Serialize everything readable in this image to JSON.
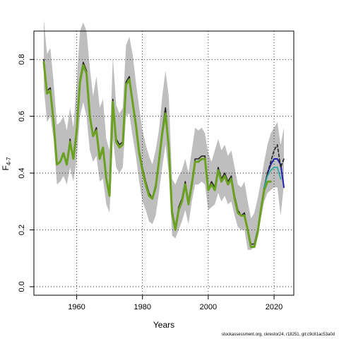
{
  "chart_data": {
    "type": "line",
    "xlabel": "Years",
    "ylabel_base": "F",
    "ylabel_sub": "4-7",
    "xlim": [
      1947,
      2026
    ],
    "ylim": [
      -0.03,
      0.9
    ],
    "xticks": [
      1960,
      1980,
      2000,
      2020
    ],
    "yticks": [
      0.0,
      0.2,
      0.4,
      0.6,
      0.8
    ],
    "grid": true,
    "colors": {
      "band": "#bebebe",
      "green": "#6aa121",
      "olive": "#a8a838",
      "dark": "#222222",
      "blue": "#2020b0",
      "teal": "#22a8a0",
      "grid": "#000000"
    },
    "band_upper": {
      "x": [
        1950,
        1951,
        1952,
        1953,
        1954,
        1955,
        1956,
        1957,
        1958,
        1959,
        1960,
        1961,
        1962,
        1963,
        1964,
        1965,
        1966,
        1967,
        1968,
        1969,
        1970,
        1971,
        1972,
        1973,
        1974,
        1975,
        1976,
        1977,
        1978,
        1979,
        1980,
        1981,
        1982,
        1983,
        1984,
        1985,
        1986,
        1987,
        1988,
        1989,
        1990,
        1991,
        1992,
        1993,
        1994,
        1995,
        1996,
        1997,
        1998,
        1999,
        2000,
        2001,
        2002,
        2003,
        2004,
        2005,
        2006,
        2007,
        2008,
        2009,
        2010,
        2011,
        2012,
        2013,
        2014,
        2015,
        2016,
        2017,
        2018,
        2019,
        2020,
        2021,
        2022,
        2023
      ],
      "y": [
        0.94,
        0.82,
        0.84,
        0.72,
        0.57,
        0.58,
        0.6,
        0.55,
        0.63,
        0.56,
        0.72,
        0.9,
        0.93,
        0.9,
        0.77,
        0.67,
        0.74,
        0.63,
        0.66,
        0.52,
        0.48,
        0.81,
        0.64,
        0.61,
        0.63,
        0.85,
        0.88,
        0.82,
        0.72,
        0.63,
        0.55,
        0.5,
        0.46,
        0.43,
        0.48,
        0.55,
        0.67,
        0.76,
        0.67,
        0.38,
        0.36,
        0.39,
        0.41,
        0.45,
        0.4,
        0.48,
        0.56,
        0.55,
        0.56,
        0.54,
        0.47,
        0.44,
        0.48,
        0.52,
        0.48,
        0.5,
        0.46,
        0.48,
        0.42,
        0.36,
        0.35,
        0.37,
        0.3,
        0.24,
        0.26,
        0.31,
        0.37,
        0.44,
        0.5,
        0.54,
        0.56,
        0.58,
        0.5,
        0.56
      ]
    },
    "band_lower": {
      "x": [
        1950,
        1951,
        1952,
        1953,
        1954,
        1955,
        1956,
        1957,
        1958,
        1959,
        1960,
        1961,
        1962,
        1963,
        1964,
        1965,
        1966,
        1967,
        1968,
        1969,
        1970,
        1971,
        1972,
        1973,
        1974,
        1975,
        1976,
        1977,
        1978,
        1979,
        1980,
        1981,
        1982,
        1983,
        1984,
        1985,
        1986,
        1987,
        1988,
        1989,
        1990,
        1991,
        1992,
        1993,
        1994,
        1995,
        1996,
        1997,
        1998,
        1999,
        2000,
        2001,
        2002,
        2003,
        2004,
        2005,
        2006,
        2007,
        2008,
        2009,
        2010,
        2011,
        2012,
        2013,
        2014,
        2015,
        2016,
        2017,
        2018,
        2019,
        2020,
        2021,
        2022,
        2023
      ],
      "y": [
        0.7,
        0.58,
        0.6,
        0.52,
        0.36,
        0.37,
        0.39,
        0.36,
        0.42,
        0.37,
        0.45,
        0.6,
        0.65,
        0.6,
        0.48,
        0.44,
        0.46,
        0.37,
        0.38,
        0.29,
        0.26,
        0.52,
        0.42,
        0.4,
        0.42,
        0.6,
        0.61,
        0.53,
        0.46,
        0.37,
        0.3,
        0.27,
        0.23,
        0.22,
        0.25,
        0.33,
        0.42,
        0.5,
        0.4,
        0.18,
        0.17,
        0.2,
        0.23,
        0.27,
        0.22,
        0.3,
        0.36,
        0.36,
        0.37,
        0.36,
        0.27,
        0.28,
        0.29,
        0.33,
        0.3,
        0.32,
        0.29,
        0.3,
        0.25,
        0.21,
        0.2,
        0.2,
        0.13,
        0.13,
        0.14,
        0.18,
        0.24,
        0.3,
        0.33,
        0.34,
        0.35,
        0.35,
        0.25,
        0.36
      ]
    },
    "series": [
      {
        "color_key": "dark",
        "width": 1.6,
        "dashed": false,
        "x": [
          1950,
          1951,
          1952,
          1953,
          1954,
          1955,
          1956,
          1957,
          1958,
          1959,
          1960,
          1961,
          1962,
          1963,
          1964,
          1965,
          1966,
          1967,
          1968,
          1969,
          1970,
          1971,
          1972,
          1973,
          1974,
          1975,
          1976,
          1977,
          1978,
          1979,
          1980,
          1981,
          1982,
          1983,
          1984,
          1985,
          1986,
          1987,
          1988,
          1989,
          1990,
          1991,
          1992,
          1993,
          1994,
          1995,
          1996,
          1997,
          1998,
          1999,
          2000,
          2001,
          2002,
          2003,
          2004,
          2005,
          2006,
          2007,
          2008,
          2009,
          2010,
          2011,
          2012,
          2013,
          2014,
          2015,
          2016,
          2017,
          2018
        ],
        "y": [
          0.8,
          0.69,
          0.7,
          0.59,
          0.43,
          0.44,
          0.47,
          0.43,
          0.52,
          0.45,
          0.56,
          0.73,
          0.79,
          0.76,
          0.6,
          0.53,
          0.56,
          0.45,
          0.49,
          0.38,
          0.32,
          0.66,
          0.52,
          0.5,
          0.51,
          0.72,
          0.74,
          0.66,
          0.58,
          0.48,
          0.42,
          0.37,
          0.33,
          0.31,
          0.36,
          0.45,
          0.55,
          0.63,
          0.5,
          0.27,
          0.21,
          0.28,
          0.31,
          0.37,
          0.3,
          0.37,
          0.45,
          0.45,
          0.46,
          0.46,
          0.34,
          0.37,
          0.35,
          0.42,
          0.38,
          0.4,
          0.37,
          0.39,
          0.32,
          0.27,
          0.25,
          0.26,
          0.2,
          0.15,
          0.15,
          0.2,
          0.28,
          0.35,
          0.4
        ]
      },
      {
        "color_key": "green",
        "width": 3,
        "dashed": false,
        "x": [
          1950,
          1951,
          1952,
          1953,
          1954,
          1955,
          1956,
          1957,
          1958,
          1959,
          1960,
          1961,
          1962,
          1963,
          1964,
          1965,
          1966,
          1967,
          1968,
          1969,
          1970,
          1971,
          1972,
          1973,
          1974,
          1975,
          1976,
          1977,
          1978,
          1979,
          1980,
          1981,
          1982,
          1983,
          1984,
          1985,
          1986,
          1987,
          1988,
          1989,
          1990,
          1991,
          1992,
          1993,
          1994,
          1995,
          1996,
          1997,
          1998,
          1999,
          2000,
          2001,
          2002,
          2003,
          2004,
          2005,
          2006,
          2007,
          2008,
          2009,
          2010,
          2011,
          2012,
          2013,
          2014,
          2015,
          2016,
          2017,
          2018,
          2019
        ],
        "y": [
          0.79,
          0.68,
          0.69,
          0.58,
          0.43,
          0.44,
          0.47,
          0.43,
          0.51,
          0.45,
          0.55,
          0.72,
          0.78,
          0.75,
          0.6,
          0.53,
          0.55,
          0.45,
          0.49,
          0.38,
          0.32,
          0.65,
          0.51,
          0.49,
          0.5,
          0.71,
          0.73,
          0.65,
          0.57,
          0.47,
          0.41,
          0.36,
          0.32,
          0.31,
          0.35,
          0.44,
          0.54,
          0.61,
          0.49,
          0.26,
          0.2,
          0.27,
          0.3,
          0.36,
          0.29,
          0.36,
          0.44,
          0.44,
          0.45,
          0.45,
          0.34,
          0.36,
          0.34,
          0.41,
          0.37,
          0.39,
          0.36,
          0.38,
          0.31,
          0.26,
          0.25,
          0.25,
          0.2,
          0.14,
          0.14,
          0.19,
          0.27,
          0.34,
          0.37,
          0.37
        ]
      },
      {
        "color_key": "teal",
        "width": 1.6,
        "dashed": false,
        "x": [
          2017,
          2018,
          2019,
          2020,
          2021,
          2022
        ],
        "y": [
          0.35,
          0.39,
          0.41,
          0.42,
          0.42,
          0.38
        ]
      },
      {
        "color_key": "blue",
        "width": 2,
        "dashed": false,
        "x": [
          2018,
          2019,
          2020,
          2021,
          2022,
          2023
        ],
        "y": [
          0.4,
          0.43,
          0.45,
          0.45,
          0.43,
          0.35
        ]
      },
      {
        "color_key": "dark",
        "width": 1.6,
        "dashed": true,
        "x": [
          2018,
          2019,
          2020,
          2021,
          2022,
          2023
        ],
        "y": [
          0.4,
          0.44,
          0.48,
          0.5,
          0.42,
          0.45
        ]
      }
    ]
  },
  "footer": "stockassessment.org, ckrestor24, r18251, git:c9c81ac53a0d"
}
